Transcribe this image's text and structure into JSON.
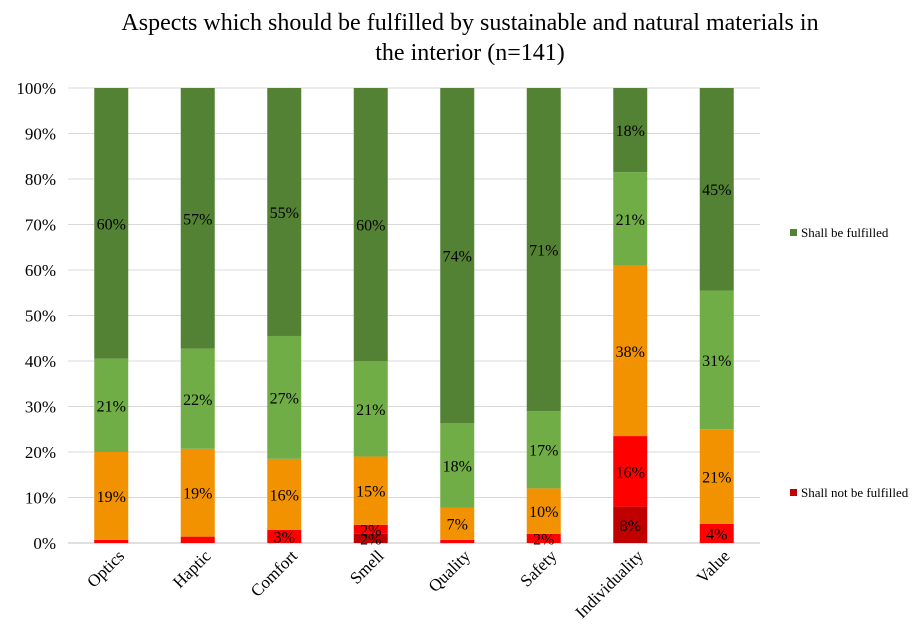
{
  "chart_data": {
    "type": "bar",
    "stacked": true,
    "normalized": true,
    "title_lines": [
      "Aspects which should be fulfilled by sustainable and natural materials in",
      "the interior (n=141)"
    ],
    "categories": [
      "Optics",
      "Haptic",
      "Comfort",
      "Smell",
      "Quality",
      "Safety",
      "Individuality",
      "Value"
    ],
    "ylim": [
      0,
      100
    ],
    "y_ticks": [
      "0%",
      "10%",
      "20%",
      "30%",
      "40%",
      "50%",
      "60%",
      "70%",
      "80%",
      "90%",
      "100%"
    ],
    "grid": true,
    "series": [
      {
        "color": "#c00000",
        "values": [
          0,
          0,
          0,
          2,
          0,
          0,
          8,
          0
        ],
        "labels": [
          "",
          "",
          "",
          "2%",
          "",
          "",
          "8%",
          ""
        ]
      },
      {
        "color": "#ff0000",
        "values": [
          0.7,
          1.4,
          2.9,
          2,
          0.7,
          2,
          15.5,
          4.2
        ],
        "labels": [
          "",
          "",
          "3%",
          "2%",
          "",
          "2%",
          "16%",
          "4%"
        ]
      },
      {
        "color": "#f39200",
        "values": [
          19.3,
          19.3,
          15.6,
          15,
          7.1,
          10,
          37.5,
          20.8
        ],
        "labels": [
          "19%",
          "19%",
          "16%",
          "15%",
          "7%",
          "10%",
          "38%",
          "21%"
        ]
      },
      {
        "color": "#70ad47",
        "values": [
          20.5,
          22,
          27,
          21,
          18.5,
          17,
          20.5,
          30.5
        ],
        "labels": [
          "21%",
          "22%",
          "27%",
          "21%",
          "18%",
          "17%",
          "21%",
          "31%"
        ]
      },
      {
        "name": "Shall be fulfilled",
        "color": "#548235",
        "values": [
          59.5,
          57.3,
          54.5,
          60,
          73.7,
          71,
          18.5,
          44.5
        ],
        "labels": [
          "60%",
          "57%",
          "55%",
          "60%",
          "74%",
          "71%",
          "18%",
          "45%"
        ]
      }
    ],
    "legend": [
      {
        "label": "Shall be fulfilled",
        "color": "#548235"
      },
      {
        "label": "Shall not be fulfilled",
        "color": "#c00000"
      }
    ],
    "legend_position": "right"
  }
}
